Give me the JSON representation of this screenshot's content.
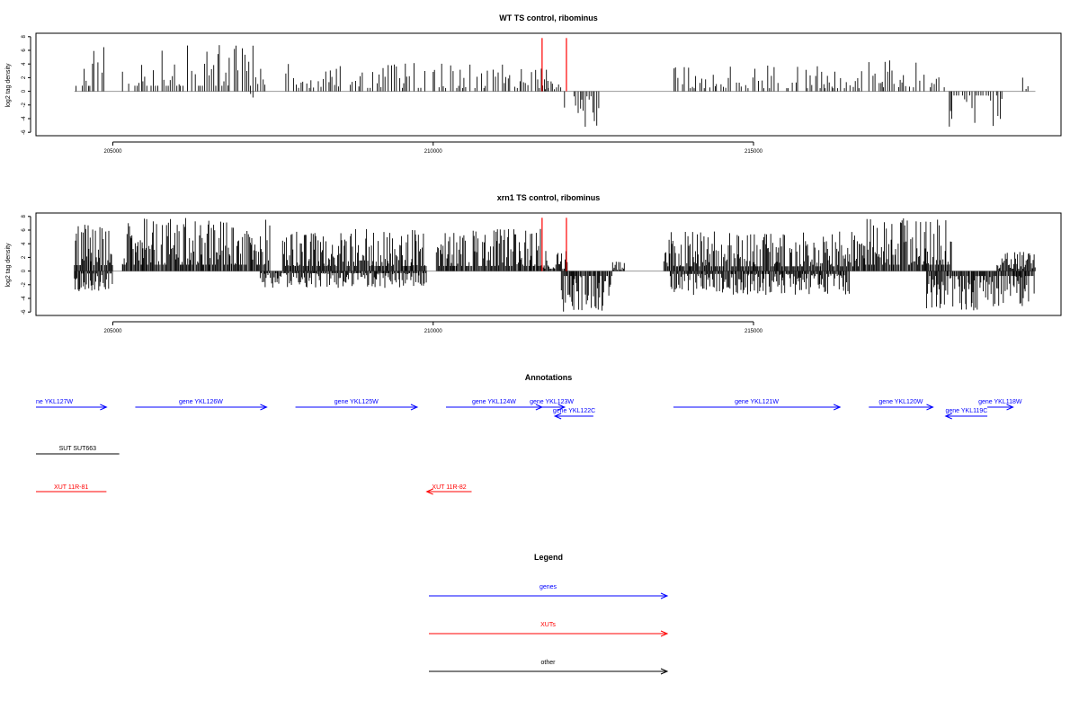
{
  "chart_data": [
    {
      "type": "bar",
      "title": "WT TS control, ribominus",
      "ylabel": "log2 tag density",
      "xlim": [
        203800,
        219800
      ],
      "ylim": [
        -6.5,
        8.5
      ],
      "xticks": [
        205000,
        210000,
        215000
      ],
      "xtick_labels": [
        "205000",
        "210000",
        "215000"
      ],
      "yticks": [
        8,
        6,
        4,
        2,
        0,
        -2,
        -4,
        -6
      ],
      "ytick_labels": [
        "8",
        "6",
        "4",
        "2",
        "0",
        "-2",
        "-4",
        "-6"
      ],
      "grid": false,
      "seed": 11,
      "density": "sparse",
      "series": [
        {
          "kind": "plus",
          "regions": [
            {
              "x0": 204400,
              "x1": 204900,
              "peak": 6.7
            },
            {
              "x0": 205150,
              "x1": 207400,
              "peak": 6.8
            },
            {
              "x0": 207700,
              "x1": 209900,
              "peak": 4.2
            },
            {
              "x0": 210000,
              "x1": 211800,
              "peak": 4.1
            },
            {
              "x0": 211750,
              "x1": 212020,
              "peak": 2.5
            },
            {
              "x0": 213700,
              "x1": 216700,
              "peak": 3.8
            },
            {
              "x0": 216800,
              "x1": 218000,
              "peak": 4.9
            },
            {
              "x0": 219200,
              "x1": 219300,
              "peak": 2.0
            }
          ]
        },
        {
          "kind": "minus",
          "regions": [
            {
              "x0": 207150,
              "x1": 207250,
              "peak": -1.0
            },
            {
              "x0": 212050,
              "x1": 212700,
              "peak": -6.1
            },
            {
              "x0": 218000,
              "x1": 218900,
              "peak": -5.2
            }
          ]
        }
      ],
      "markers": [
        {
          "x": 211700,
          "y_top": 7.8,
          "color": "#ff0000"
        },
        {
          "x": 212080,
          "y_top": 7.8,
          "color": "#ff0000"
        }
      ]
    },
    {
      "type": "bar",
      "title": "xrn1 TS control, ribominus",
      "ylabel": "log2 tag density",
      "xlim": [
        203800,
        219800
      ],
      "ylim": [
        -6.5,
        8.5
      ],
      "xticks": [
        205000,
        210000,
        215000
      ],
      "xtick_labels": [
        "205000",
        "210000",
        "215000"
      ],
      "yticks": [
        8,
        6,
        4,
        2,
        0,
        -2,
        -4,
        -6
      ],
      "ytick_labels": [
        "8",
        "6",
        "4",
        "2",
        "0",
        "-2",
        "-4",
        "-6"
      ],
      "grid": false,
      "seed": 29,
      "density": "dense",
      "series": [
        {
          "kind": "plus",
          "regions": [
            {
              "x0": 204400,
              "x1": 205000,
              "peak": 7.2
            },
            {
              "x0": 205150,
              "x1": 207450,
              "peak": 7.8
            },
            {
              "x0": 207650,
              "x1": 209900,
              "peak": 6.2
            },
            {
              "x0": 210050,
              "x1": 211700,
              "peak": 6.3
            },
            {
              "x0": 211700,
              "x1": 212100,
              "peak": 3.0
            },
            {
              "x0": 212800,
              "x1": 213000,
              "peak": 1.5
            },
            {
              "x0": 213600,
              "x1": 216700,
              "peak": 5.8
            },
            {
              "x0": 216700,
              "x1": 218100,
              "peak": 7.8
            },
            {
              "x0": 218800,
              "x1": 219400,
              "peak": 2.8
            }
          ]
        },
        {
          "kind": "minus",
          "regions": [
            {
              "x0": 204400,
              "x1": 205000,
              "peak": -3.0
            },
            {
              "x0": 207300,
              "x1": 209900,
              "peak": -2.5
            },
            {
              "x0": 212000,
              "x1": 212800,
              "peak": -6.0
            },
            {
              "x0": 213700,
              "x1": 216500,
              "peak": -3.5
            },
            {
              "x0": 217700,
              "x1": 219400,
              "peak": -6.0
            }
          ]
        }
      ],
      "markers": [
        {
          "x": 211700,
          "y_top": 7.8,
          "color": "#ff0000"
        },
        {
          "x": 212080,
          "y_top": 7.8,
          "color": "#ff0000"
        }
      ]
    }
  ],
  "annotations": {
    "title": "Annotations",
    "genes": [
      {
        "label": "ne YKL127W",
        "x0": 203800,
        "x1": 204900,
        "dir": "right",
        "row": 0
      },
      {
        "label": "gene YKL126W",
        "x0": 205350,
        "x1": 207400,
        "dir": "right",
        "row": 0
      },
      {
        "label": "gene YKL125W",
        "x0": 207850,
        "x1": 209750,
        "dir": "right",
        "row": 0
      },
      {
        "label": "gene YKL124W",
        "x0": 210200,
        "x1": 211700,
        "dir": "right",
        "row": 0
      },
      {
        "label": "gene YKL123W",
        "x0": 211650,
        "x1": 212050,
        "dir": "right",
        "row": 0
      },
      {
        "label": "gene YKL122C",
        "x0": 211900,
        "x1": 212500,
        "dir": "left",
        "row": 1
      },
      {
        "label": "gene YKL121W",
        "x0": 213750,
        "x1": 216350,
        "dir": "right",
        "row": 0
      },
      {
        "label": "gene YKL120W",
        "x0": 216800,
        "x1": 217800,
        "dir": "right",
        "row": 0
      },
      {
        "label": "gene YKL119C",
        "x0": 218000,
        "x1": 218650,
        "dir": "left",
        "row": 1
      },
      {
        "label": "gene YKL118W",
        "x0": 218650,
        "x1": 219050,
        "dir": "right",
        "row": 0
      }
    ],
    "other": [
      {
        "label": "SUT SUT663",
        "x0": 203800,
        "x1": 205100,
        "dir": "none"
      }
    ],
    "xuts": [
      {
        "label": "XUT 11R-81",
        "x0": 203800,
        "x1": 204900,
        "dir": "none"
      },
      {
        "label": "XUT 11R-82",
        "x0": 209900,
        "x1": 210600,
        "dir": "left"
      }
    ]
  },
  "legend": {
    "title": "Legend",
    "items": [
      {
        "label": "genes",
        "color": "#0000ff"
      },
      {
        "label": "XUTs",
        "color": "#ff0000"
      },
      {
        "label": "other",
        "color": "#000000"
      }
    ]
  },
  "colors": {
    "genes": "#0000ff",
    "xuts": "#ff0000",
    "other": "#000000",
    "signal": "#000000",
    "baseline": "#9a9a9a",
    "axis": "#000000"
  }
}
